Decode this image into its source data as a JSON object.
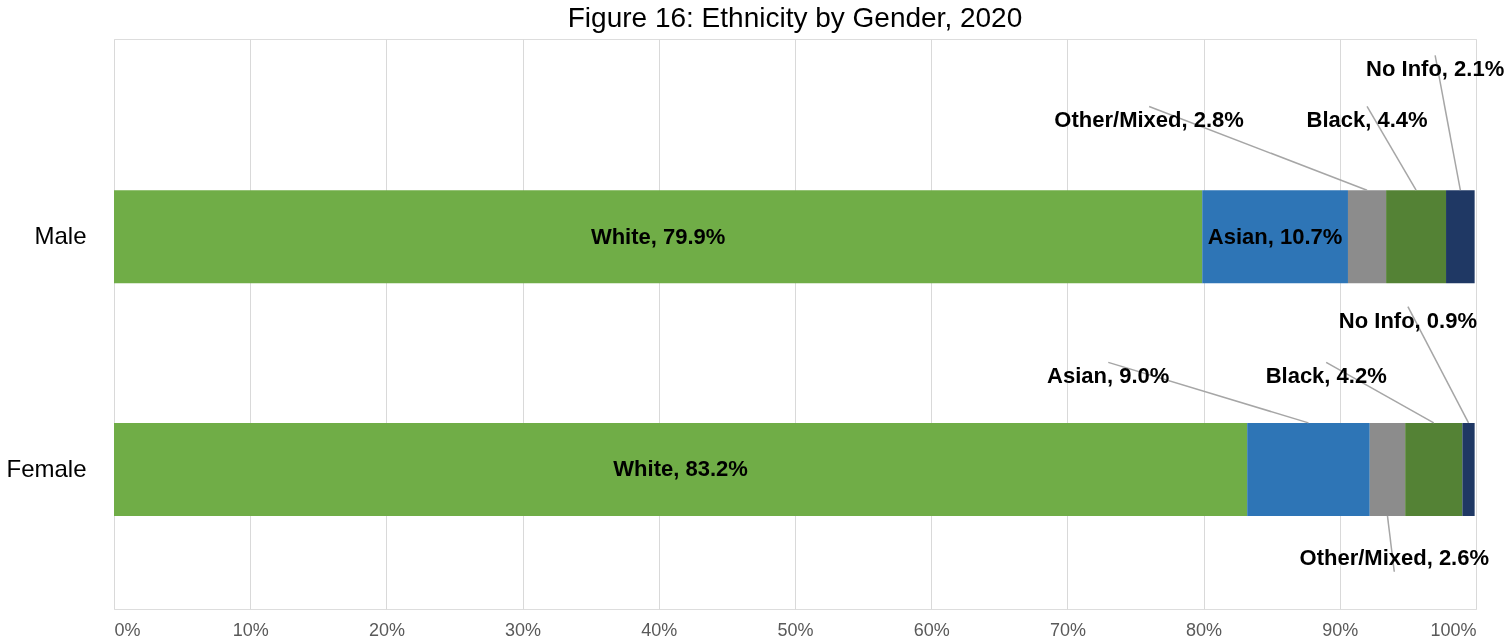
{
  "chart_data": {
    "type": "bar",
    "orientation": "horizontal",
    "stacked": true,
    "title": "Figure 16: Ethnicity by Gender, 2020",
    "categories": [
      "Male",
      "Female"
    ],
    "series": [
      {
        "color": "#70ad47",
        "values": [
          79.9,
          83.2
        ],
        "value_labels": [
          "White, 79.9%",
          "White, 83.2%"
        ]
      },
      {
        "color": "#2e75b6",
        "values": [
          10.7,
          9.0
        ],
        "value_labels": [
          "Asian, 10.7%",
          "Asian, 9.0%"
        ]
      },
      {
        "color": "#8c8c8c",
        "values": [
          2.8,
          2.6
        ],
        "value_labels": [
          "Other/Mixed, 2.8%",
          "Other/Mixed, 2.6%"
        ]
      },
      {
        "color": "#548235",
        "values": [
          4.4,
          4.2
        ],
        "value_labels": [
          "Black, 4.4%",
          "Black, 4.2%"
        ]
      },
      {
        "color": "#1f3864",
        "values": [
          2.1,
          0.9
        ],
        "value_labels": [
          "No Info, 2.1%",
          "No Info, 0.9%"
        ]
      }
    ],
    "xlim": [
      0,
      100
    ],
    "xticks": [
      {
        "value": 0,
        "label": "0%"
      },
      {
        "value": 10,
        "label": "10%"
      },
      {
        "value": 20,
        "label": "20%"
      },
      {
        "value": 30,
        "label": "30%"
      },
      {
        "value": 40,
        "label": "40%"
      },
      {
        "value": 50,
        "label": "50%"
      },
      {
        "value": 60,
        "label": "60%"
      },
      {
        "value": 70,
        "label": "70%"
      },
      {
        "value": 80,
        "label": "80%"
      },
      {
        "value": 90,
        "label": "90%"
      },
      {
        "value": 100,
        "label": "100%"
      }
    ],
    "grid": "x",
    "legend": false
  }
}
